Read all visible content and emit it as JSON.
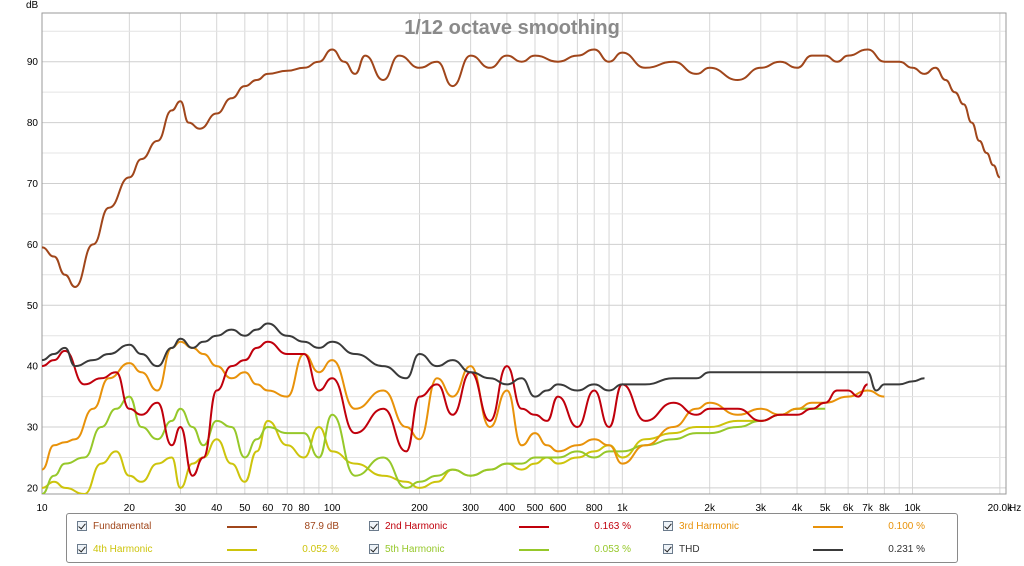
{
  "chart_data": {
    "type": "line",
    "title": "1/12 octave smoothing",
    "ylabel": "dB",
    "xunit": "Hz",
    "xscale": "log",
    "xlim": [
      10,
      21000
    ],
    "ylim": [
      19,
      98
    ],
    "yticks": [
      20,
      30,
      40,
      50,
      60,
      70,
      80,
      90
    ],
    "xticks": [
      {
        "v": 10,
        "label": "10"
      },
      {
        "v": 20,
        "label": "20"
      },
      {
        "v": 30,
        "label": "30"
      },
      {
        "v": 40,
        "label": "40"
      },
      {
        "v": 50,
        "label": "50"
      },
      {
        "v": 60,
        "label": "60"
      },
      {
        "v": 70,
        "label": "70"
      },
      {
        "v": 80,
        "label": "80"
      },
      {
        "v": 100,
        "label": "100"
      },
      {
        "v": 200,
        "label": "200"
      },
      {
        "v": 300,
        "label": "300"
      },
      {
        "v": 400,
        "label": "400"
      },
      {
        "v": 500,
        "label": "500"
      },
      {
        "v": 600,
        "label": "600"
      },
      {
        "v": 800,
        "label": "800"
      },
      {
        "v": 1000,
        "label": "1k"
      },
      {
        "v": 2000,
        "label": "2k"
      },
      {
        "v": 3000,
        "label": "3k"
      },
      {
        "v": 4000,
        "label": "4k"
      },
      {
        "v": 5000,
        "label": "5k"
      },
      {
        "v": 6000,
        "label": "6k"
      },
      {
        "v": 7000,
        "label": "7k"
      },
      {
        "v": 8000,
        "label": "8k"
      },
      {
        "v": 10000,
        "label": "10k"
      },
      {
        "v": 20000,
        "label": "20.0k"
      }
    ],
    "grid": true,
    "legend": "bottom",
    "series": [
      {
        "name": "Fundamental",
        "color": "#a0461b",
        "value_label": "87.9 dB",
        "x": [
          10,
          11,
          12,
          13,
          15,
          17,
          20,
          22,
          25,
          28,
          30,
          32,
          35,
          40,
          45,
          50,
          55,
          60,
          70,
          80,
          90,
          100,
          110,
          120,
          130,
          150,
          170,
          200,
          230,
          260,
          300,
          350,
          400,
          450,
          500,
          600,
          700,
          800,
          900,
          1000,
          1200,
          1500,
          1800,
          2000,
          2500,
          3000,
          3500,
          4000,
          4500,
          5000,
          5500,
          6000,
          7000,
          8000,
          9000,
          10000,
          11000,
          12000,
          13000,
          14000,
          15000,
          16000,
          17000,
          18000,
          19000,
          20000
        ],
        "y": [
          59.5,
          58,
          55,
          53,
          60,
          66,
          71,
          74,
          77,
          82,
          83.5,
          80,
          79,
          81.5,
          84,
          86,
          87,
          88,
          88.5,
          89,
          90,
          92,
          90,
          88,
          91,
          87,
          91,
          89,
          90,
          86,
          91,
          89,
          91,
          90,
          91,
          90,
          91,
          92,
          90,
          91.5,
          89,
          90,
          88,
          89,
          87,
          89,
          90,
          89,
          91,
          91,
          90,
          91,
          92,
          90,
          90,
          89,
          88,
          89,
          87,
          85,
          83,
          80,
          77,
          75,
          73,
          71
        ]
      },
      {
        "name": "2nd Harmonic",
        "color": "#c0000c",
        "value_label": "0.163 %",
        "x": [
          10,
          11,
          12,
          14,
          16,
          18,
          20,
          22,
          25,
          28,
          30,
          33,
          36,
          40,
          45,
          50,
          55,
          60,
          70,
          80,
          90,
          100,
          120,
          150,
          180,
          200,
          230,
          260,
          300,
          350,
          400,
          450,
          500,
          550,
          600,
          700,
          800,
          900,
          1000,
          1200,
          1500,
          1800,
          2000,
          2500,
          3000,
          3500,
          4000,
          4500,
          5000,
          5500,
          6000,
          6500,
          7000
        ],
        "y": [
          40,
          41,
          42.5,
          37,
          38,
          39,
          33,
          32,
          34,
          27,
          30,
          22,
          25,
          36,
          40,
          41,
          43,
          44,
          42,
          42,
          36,
          38,
          29,
          33,
          26,
          35,
          37,
          32,
          39,
          31,
          40,
          33,
          32,
          31,
          35,
          30,
          36,
          30,
          37,
          31,
          34,
          32,
          33,
          33,
          31,
          32,
          32,
          33,
          34,
          36,
          36,
          35,
          37
        ]
      },
      {
        "name": "3rd Harmonic",
        "color": "#e8920a",
        "value_label": "0.100 %",
        "x": [
          10,
          11,
          12,
          13,
          15,
          17,
          20,
          22,
          25,
          28,
          30,
          33,
          36,
          40,
          45,
          50,
          55,
          60,
          70,
          80,
          90,
          100,
          120,
          150,
          180,
          200,
          230,
          260,
          300,
          350,
          400,
          450,
          500,
          550,
          600,
          700,
          800,
          900,
          1000,
          1200,
          1500,
          1800,
          2000,
          2500,
          3000,
          3500,
          4000,
          4500,
          5000,
          6000,
          7000,
          8000
        ],
        "y": [
          23,
          27,
          27.5,
          28,
          33,
          38,
          40.5,
          39,
          36,
          43,
          44,
          43,
          42,
          40,
          38,
          39,
          37,
          36,
          35,
          42,
          39,
          41,
          33,
          36,
          30,
          28,
          38,
          35,
          40,
          30,
          36,
          27,
          29,
          27,
          26,
          27,
          28,
          27,
          24,
          27,
          30,
          33,
          34,
          32,
          33,
          32,
          33,
          34,
          34,
          35,
          36,
          35
        ]
      },
      {
        "name": "4th Harmonic",
        "color": "#cdc40c",
        "value_label": "0.052 %",
        "x": [
          10,
          11,
          12,
          14,
          16,
          18,
          20,
          22,
          25,
          28,
          30,
          33,
          36,
          40,
          45,
          50,
          55,
          60,
          70,
          80,
          90,
          100,
          120,
          150,
          180,
          200,
          230,
          260,
          300,
          350,
          400,
          450,
          500,
          550,
          600,
          700,
          800,
          900,
          1000,
          1200,
          1500,
          1800,
          2000,
          2500,
          3000,
          3500,
          4000,
          4500,
          5000
        ],
        "y": [
          20,
          21,
          20,
          19,
          24,
          26,
          22,
          21,
          24,
          25,
          20,
          24,
          25,
          28,
          24,
          21,
          26,
          31,
          27,
          25,
          30,
          26,
          24,
          22,
          21,
          20,
          21,
          23,
          22,
          23,
          24,
          23,
          24,
          25,
          24,
          25,
          26,
          27,
          25,
          28,
          29,
          30,
          30,
          31,
          31,
          32,
          33,
          33,
          34
        ]
      },
      {
        "name": "5th Harmonic",
        "color": "#96c82a",
        "value_label": "0.053 %",
        "x": [
          10,
          11,
          12,
          14,
          16,
          18,
          20,
          22,
          25,
          28,
          30,
          33,
          36,
          40,
          45,
          50,
          55,
          60,
          70,
          80,
          90,
          100,
          120,
          150,
          180,
          200,
          230,
          260,
          300,
          350,
          400,
          450,
          500,
          550,
          600,
          700,
          800,
          900,
          1000,
          1200,
          1500,
          1800,
          2000,
          2500,
          3000,
          3500,
          4000,
          4500,
          5000
        ],
        "y": [
          19,
          22,
          24,
          25,
          30,
          33,
          35,
          30,
          28,
          31,
          33,
          30,
          27,
          31,
          30,
          25,
          28,
          30,
          29,
          29,
          25,
          32,
          22,
          25,
          20,
          21,
          22,
          23,
          22,
          23,
          24,
          24,
          25,
          25,
          25,
          26,
          25,
          26,
          26,
          27,
          28,
          29,
          29,
          30,
          31,
          32,
          33,
          33,
          33
        ]
      },
      {
        "name": "THD",
        "color": "#3a3a3a",
        "value_label": "0.231 %",
        "x": [
          10,
          11,
          12,
          13,
          15,
          17,
          20,
          22,
          25,
          28,
          30,
          33,
          36,
          40,
          45,
          50,
          55,
          60,
          70,
          80,
          90,
          100,
          120,
          150,
          180,
          200,
          230,
          260,
          300,
          350,
          400,
          450,
          500,
          550,
          600,
          700,
          800,
          900,
          1000,
          1200,
          1500,
          1800,
          2000,
          2500,
          3000,
          3500,
          4000,
          4500,
          5000,
          6000,
          7000,
          7500,
          8000,
          9000,
          10000,
          11000
        ],
        "y": [
          41,
          42,
          43,
          40,
          41,
          42,
          43.5,
          42,
          40,
          43,
          44.5,
          43,
          44,
          45,
          46,
          45,
          46,
          47,
          45,
          44,
          43,
          44,
          42,
          40,
          38,
          42,
          40,
          41,
          39,
          38,
          37,
          38,
          35,
          36,
          37,
          36,
          37,
          36,
          37,
          37,
          38,
          38,
          39,
          39,
          39,
          39,
          39,
          39,
          39,
          39,
          39,
          36,
          37,
          37,
          37.5,
          38
        ]
      }
    ]
  }
}
